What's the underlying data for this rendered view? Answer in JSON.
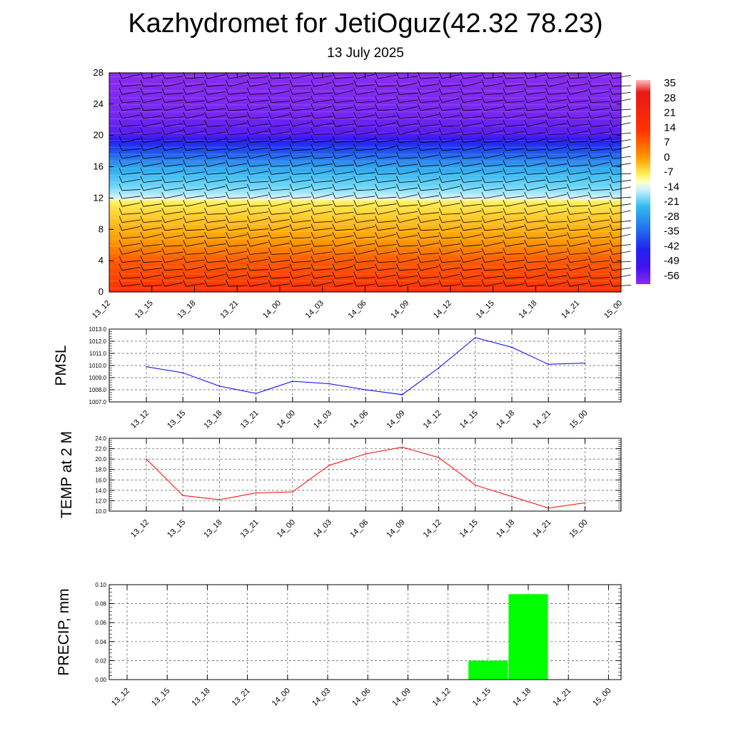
{
  "header": {
    "title": "Kazhydromet for JetiOguz(42.32 78.23)",
    "subtitle": "13 July 2025"
  },
  "colors": {
    "pmsl_line": "#0000ff",
    "temp_line": "#ff0000",
    "precip_bar": "#00ff00",
    "grid": "#555555"
  },
  "chart_data": [
    {
      "type": "heatmap",
      "title": "",
      "x_categories": [
        "13_12",
        "13_15",
        "13_18",
        "13_21",
        "14_00",
        "14_03",
        "14_06",
        "14_09",
        "14_12",
        "14_15",
        "14_18",
        "14_21",
        "15_00"
      ],
      "ylim": [
        0,
        28
      ],
      "y_ticks": [
        "0",
        "4",
        "8",
        "12",
        "16",
        "20",
        "24",
        "28"
      ],
      "colorbar_labels": [
        "35",
        "28",
        "21",
        "14",
        "7",
        "0",
        "-7",
        "-14",
        "-21",
        "-28",
        "-35",
        "-42",
        "-49",
        "-56"
      ],
      "levels_temperature_profile": [
        {
          "y": 0,
          "value": 28
        },
        {
          "y": 4,
          "value": 21
        },
        {
          "y": 8,
          "value": 10
        },
        {
          "y": 11.5,
          "value": 0
        },
        {
          "y": 12,
          "value": -14
        },
        {
          "y": 16,
          "value": -30
        },
        {
          "y": 20,
          "value": -56
        },
        {
          "y": 23,
          "value": -60
        },
        {
          "y": 28,
          "value": -62
        }
      ],
      "wind_barbs": true
    },
    {
      "type": "line",
      "ylabel": "PMSL",
      "x": [
        "13_12",
        "13_15",
        "13_18",
        "13_21",
        "14_00",
        "14_03",
        "14_06",
        "14_09",
        "14_12",
        "14_15",
        "14_18",
        "14_21",
        "15_00"
      ],
      "series": [
        {
          "values": [
            1009.9,
            1009.4,
            1008.3,
            1007.7,
            1008.7,
            1008.5,
            1008.0,
            1007.6,
            1009.8,
            1012.3,
            1011.5,
            1010.1,
            1010.2
          ]
        }
      ],
      "ylim": [
        1007.0,
        1013.0
      ],
      "y_ticks": [
        "1007.0",
        "1008.0",
        "1009.0",
        "1010.0",
        "1011.0",
        "1012.0",
        "1013.0"
      ],
      "grid": true
    },
    {
      "type": "line",
      "ylabel": "TEMP at 2 M",
      "x": [
        "13_12",
        "13_15",
        "13_18",
        "13_21",
        "14_00",
        "14_03",
        "14_06",
        "14_09",
        "14_12",
        "14_15",
        "14_18",
        "14_21",
        "15_00"
      ],
      "series": [
        {
          "values": [
            20.0,
            13.0,
            12.2,
            13.5,
            13.7,
            18.8,
            21.0,
            22.3,
            20.3,
            15.0,
            12.8,
            10.6,
            11.6
          ]
        }
      ],
      "ylim": [
        10.0,
        24.0
      ],
      "y_ticks": [
        "10.0",
        "12.0",
        "14.0",
        "16.0",
        "18.0",
        "20.0",
        "22.0",
        "24.0"
      ],
      "grid": true
    },
    {
      "type": "bar",
      "ylabel": "PRECIP, mm",
      "categories": [
        "13_12",
        "13_15",
        "13_18",
        "13_21",
        "14_00",
        "14_03",
        "14_06",
        "14_09",
        "14_12",
        "14_15",
        "14_18",
        "14_21",
        "15_00"
      ],
      "values": [
        0,
        0,
        0,
        0,
        0,
        0,
        0,
        0,
        0,
        0.02,
        0.09,
        0,
        0
      ],
      "ylim": [
        0,
        0.1
      ],
      "y_ticks": [
        "0.00",
        "0.02",
        "0.04",
        "0.06",
        "0.08",
        "0.10"
      ],
      "grid": true
    }
  ]
}
